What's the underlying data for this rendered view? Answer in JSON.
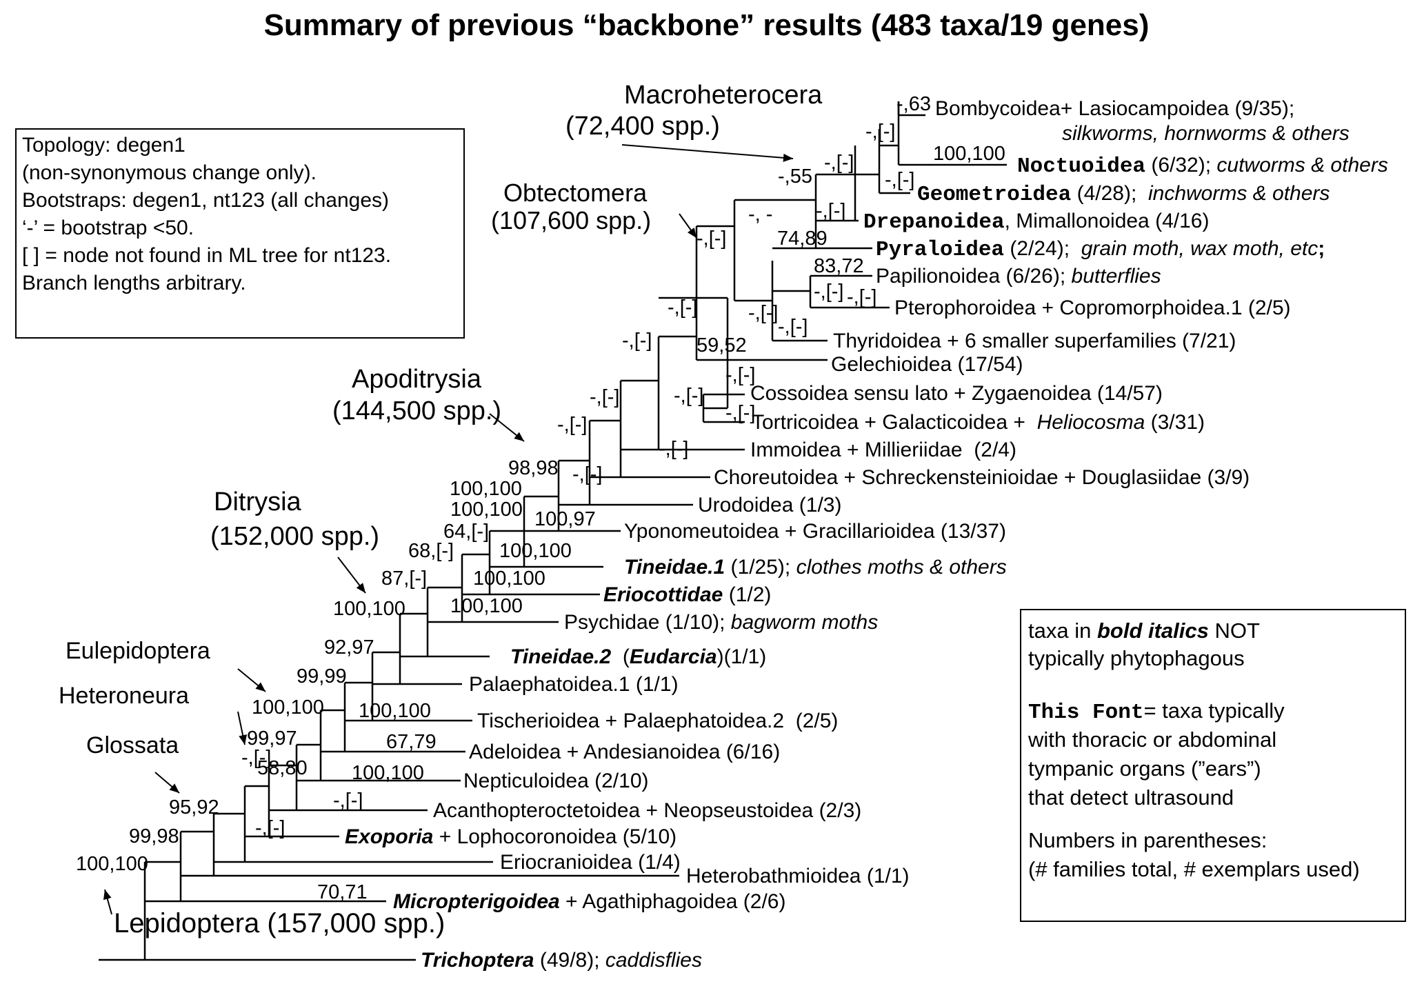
{
  "title": "Summary of previous “backbone” results (483 taxa/19 genes)",
  "topology_box": [
    "Topology: degen1",
    "(non-synonymous change only).",
    " Bootstraps: degen1, nt123 (all changes)",
    "   ‘-’ =  bootstrap <50.",
    " [ ] = node not found in ML tree for nt123.",
    " Branch lengths arbitrary."
  ],
  "key_box": {
    "pre1": "taxa in ",
    "bold_italic": "bold italics",
    "post1": " NOT",
    "line2": " typically phytophagous",
    "font_sample": "This Font",
    "font_desc": "= taxa typically",
    "line4": "with thoracic or abdominal",
    "line5": "tympanic organs (”ears”)",
    "line6": "that detect ultrasound",
    "line7": " Numbers in parentheses:",
    "line8": "(# families total, # exemplars used)"
  },
  "clades": [
    {
      "name": "Macroheterocera",
      "spp": "(72,400 spp.)"
    },
    {
      "name": "Obtectomera",
      "spp": "(107,600 spp.)"
    },
    {
      "name": "Apoditrysia",
      "spp": "(144,500 spp.)"
    },
    {
      "name": "Ditrysia",
      "spp": "(152,000 spp.)"
    },
    {
      "name": "Eulepidoptera",
      "spp": ""
    },
    {
      "name": "Heteroneura",
      "spp": ""
    },
    {
      "name": "Glossata",
      "spp": ""
    },
    {
      "name": "Lepidoptera (157,000 spp.)",
      "spp": ""
    }
  ],
  "taxa": [
    {
      "parts": [
        {
          "t": "Bombycoidea+ Lasiocampoidea (9/35);"
        }
      ]
    },
    {
      "parts": [
        {
          "t": "silkworms, hornworms & others",
          "s": "i"
        }
      ]
    },
    {
      "parts": [
        {
          "t": "Noctuoidea",
          "s": "m"
        },
        {
          "t": " (6/32); "
        },
        {
          "t": "cutworms & others",
          "s": "i"
        }
      ]
    },
    {
      "parts": [
        {
          "t": "Geometroidea",
          "s": "m"
        },
        {
          "t": " (4/28);  "
        },
        {
          "t": "inchworms & others",
          "s": "i"
        }
      ]
    },
    {
      "parts": [
        {
          "t": "Drepanoidea",
          "s": "m"
        },
        {
          "t": ", Mimallonoidea (4/16)"
        }
      ]
    },
    {
      "parts": [
        {
          "t": "Pyraloidea",
          "s": "m"
        },
        {
          "t": " (2/24);  "
        },
        {
          "t": "grain moth, wax moth, etc",
          "s": "i"
        },
        {
          "t": ";",
          "s": "b"
        }
      ]
    },
    {
      "parts": [
        {
          "t": "Papilionoidea (6/26); "
        },
        {
          "t": "butterflies",
          "s": "i"
        }
      ]
    },
    {
      "parts": [
        {
          "t": "Pterophoroidea + Copromorphoidea.1 (2/5)"
        }
      ]
    },
    {
      "parts": [
        {
          "t": "Thyridoidea + 6 smaller superfamilies (7/21)"
        }
      ]
    },
    {
      "parts": [
        {
          "t": "Gelechioidea (17/54)"
        }
      ]
    },
    {
      "parts": [
        {
          "t": "Cossoidea sensu lato + Zygaenoidea (14/57)"
        }
      ]
    },
    {
      "parts": [
        {
          "t": "Tortricoidea + Galacticoidea +  "
        },
        {
          "t": "Heliocosma",
          "s": "i"
        },
        {
          "t": " (3/31)"
        }
      ]
    },
    {
      "parts": [
        {
          "t": "Immoidea + Millieriidae  (2/4)"
        }
      ]
    },
    {
      "parts": [
        {
          "t": "Choreutoidea + Schreckensteinioidae + Douglasiidae (3/9)"
        }
      ]
    },
    {
      "parts": [
        {
          "t": "Urodoidea (1/3)"
        }
      ]
    },
    {
      "parts": [
        {
          "t": "Yponomeutoidea + Gracillarioidea (13/37)"
        }
      ]
    },
    {
      "parts": [
        {
          "t": "Tineidae.1",
          "s": "bi"
        },
        {
          "t": " (1/25); "
        },
        {
          "t": "clothes moths & others",
          "s": "i"
        }
      ]
    },
    {
      "parts": [
        {
          "t": "Eriocottidae",
          "s": "bi"
        },
        {
          "t": " (1/2)"
        }
      ]
    },
    {
      "parts": [
        {
          "t": "Psychidae (1/10); "
        },
        {
          "t": "bagworm moths",
          "s": "i"
        }
      ]
    },
    {
      "parts": [
        {
          "t": "Tineidae.2",
          "s": "bi"
        },
        {
          "t": "  ("
        },
        {
          "t": "Eudarcia",
          "s": "bi"
        },
        {
          "t": ")(1/1)"
        }
      ]
    },
    {
      "parts": [
        {
          "t": "Palaephatoidea.1 (1/1)"
        }
      ]
    },
    {
      "parts": [
        {
          "t": "Tischerioidea + Palaephatoidea.2  (2/5)"
        }
      ]
    },
    {
      "parts": [
        {
          "t": "Adeloidea + Andesianoidea (6/16)"
        }
      ]
    },
    {
      "parts": [
        {
          "t": "Nepticuloidea (2/10)"
        }
      ]
    },
    {
      "parts": [
        {
          "t": "Acanthopteroctetoidea + Neopseustoidea (2/3)"
        }
      ]
    },
    {
      "parts": [
        {
          "t": "Exoporia",
          "s": "bi"
        },
        {
          "t": " + Lophocoronoidea (5/10)"
        }
      ]
    },
    {
      "parts": [
        {
          "t": "Eriocranioidea (1/4)"
        }
      ]
    },
    {
      "parts": [
        {
          "t": "Heterobathmioidea (1/1)"
        }
      ]
    },
    {
      "parts": [
        {
          "t": "Micropterigoidea",
          "s": "bi"
        },
        {
          "t": " + Agathiphagoidea (2/6)"
        }
      ]
    },
    {
      "parts": [
        {
          "t": "Trichoptera",
          "s": "bi"
        },
        {
          "t": " (49/8); "
        },
        {
          "t": "caddisflies",
          "s": "i"
        }
      ]
    }
  ],
  "supports": [
    "-,63",
    "-,[-]",
    "-,55",
    "100,100",
    "-,[-]",
    "-,[-]",
    "-,[-]",
    "-, -",
    "-,[-]",
    "74,89",
    "83,72",
    "-,[-]",
    "-,[-]",
    "-,[-]",
    "-,[-]",
    "-,[-]",
    "59,52",
    "-,[-]",
    "-,[-]",
    "-,[-]",
    "-,[-]",
    "-,[-]",
    "-,[-]",
    "-,[-]",
    "-,[-]",
    "98,98",
    "100,100",
    "100,100",
    "100,97",
    "64,[-]",
    "100,100",
    "68,[-]",
    "100,100",
    "87,[-]",
    "100,100",
    "100,100",
    "92,97",
    "99,99",
    "100,100",
    "100,100",
    "67,79",
    "99,97",
    "100,100",
    "-,[-]",
    "-,[-]",
    "58,80",
    "-,[-]",
    "95,92",
    "99,98",
    "70,71",
    "100,100"
  ]
}
